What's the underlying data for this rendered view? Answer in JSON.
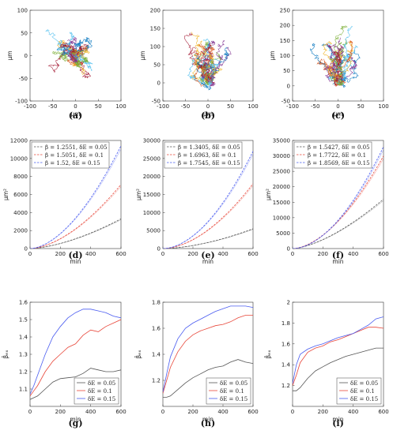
{
  "figure": {
    "captions": [
      "(a)",
      "(b)",
      "(c)",
      "(d)",
      "(e)",
      "(f)",
      "(g)",
      "(h)",
      "(i)"
    ]
  },
  "colors": {
    "trajectories": [
      "#0072bd",
      "#d95319",
      "#edb120",
      "#7e2f8e",
      "#77ac30",
      "#4dbeee",
      "#a2142f"
    ],
    "black_series": "#555555",
    "red_series": "#e8473a",
    "blue_series": "#4a5cf0"
  },
  "chart_data": [
    {
      "id": "a",
      "type": "scatter",
      "xlabel": "μm",
      "ylabel": "μm",
      "xlim": [
        -100,
        100
      ],
      "ylim": [
        -100,
        100
      ],
      "xticks": [
        -100,
        -50,
        0,
        50,
        100
      ],
      "yticks": [
        -100,
        -50,
        0,
        50,
        100
      ],
      "note": "cell trajectories"
    },
    {
      "id": "b",
      "type": "scatter",
      "xlabel": "μm",
      "ylabel": "μm",
      "xlim": [
        -100,
        100
      ],
      "ylim": [
        -50,
        200
      ],
      "xticks": [
        -100,
        -50,
        0,
        50,
        100
      ],
      "yticks": [
        -50,
        0,
        50,
        100,
        150,
        200
      ]
    },
    {
      "id": "c",
      "type": "scatter",
      "xlabel": "μm",
      "ylabel": "μm",
      "xlim": [
        -100,
        100
      ],
      "ylim": [
        -50,
        250
      ],
      "xticks": [
        -100,
        -50,
        0,
        50,
        100
      ],
      "yticks": [
        -50,
        0,
        50,
        100,
        150,
        200,
        250
      ]
    },
    {
      "id": "d",
      "type": "line",
      "xlabel": "min",
      "ylabel": "μm²",
      "xlim": [
        0,
        600
      ],
      "ylim": [
        0,
        12000
      ],
      "xticks": [
        0,
        200,
        400,
        600
      ],
      "yticks": [
        0,
        2000,
        4000,
        6000,
        8000,
        10000,
        12000
      ],
      "legend_position": "top-left",
      "series": [
        {
          "name": "β = 1.2551, δE = 0.05",
          "color": "black",
          "end": 3300,
          "exp": 1.6
        },
        {
          "name": "β = 1.5051, δE = 0.1",
          "color": "red",
          "end": 7100,
          "exp": 1.7
        },
        {
          "name": "β = 1.52, δE = 0.15",
          "color": "blue",
          "end": 11400,
          "exp": 1.75
        }
      ]
    },
    {
      "id": "e",
      "type": "line",
      "xlabel": "min",
      "ylabel": "μm²",
      "xlim": [
        0,
        600
      ],
      "ylim": [
        0,
        30000
      ],
      "xticks": [
        0,
        200,
        400,
        600
      ],
      "yticks": [
        0,
        5000,
        10000,
        15000,
        20000,
        25000,
        30000
      ],
      "legend_position": "top-left",
      "series": [
        {
          "name": "β = 1.3405, δE = 0.05",
          "color": "black",
          "end": 5500,
          "exp": 1.7
        },
        {
          "name": "β = 1.6963, δE = 0.1",
          "color": "red",
          "end": 18000,
          "exp": 1.8
        },
        {
          "name": "β = 1.7545, δE = 0.15",
          "color": "blue",
          "end": 27000,
          "exp": 1.85
        }
      ]
    },
    {
      "id": "f",
      "type": "line",
      "xlabel": "min",
      "ylabel": "μm²",
      "xlim": [
        0,
        600
      ],
      "ylim": [
        0,
        35000
      ],
      "xticks": [
        0,
        200,
        400,
        600
      ],
      "yticks": [
        0,
        5000,
        10000,
        15000,
        20000,
        25000,
        30000,
        35000
      ],
      "legend_position": "top-left",
      "series": [
        {
          "name": "β = 1.5427, δE = 0.05",
          "color": "black",
          "end": 16000,
          "exp": 1.55
        },
        {
          "name": "β = 1.7722, δE = 0.1",
          "color": "red",
          "end": 30000,
          "exp": 1.75
        },
        {
          "name": "β = 1.8569, δE = 0.15",
          "color": "blue",
          "end": 33000,
          "exp": 1.85
        }
      ]
    },
    {
      "id": "g",
      "type": "line",
      "xlabel": "min",
      "ylabel": "β̂ₑₓ",
      "xlim": [
        0,
        600
      ],
      "ylim": [
        1,
        1.6
      ],
      "xticks": [
        0,
        200,
        400,
        600
      ],
      "yticks": [
        1.1,
        1.2,
        1.3,
        1.4,
        1.5,
        1.6
      ],
      "legend_position": "bottom-right",
      "x": [
        0,
        25,
        50,
        100,
        150,
        200,
        250,
        300,
        350,
        400,
        450,
        500,
        550,
        600
      ],
      "series": [
        {
          "name": "δE = 0.05",
          "color": "black",
          "values": [
            1.04,
            1.05,
            1.06,
            1.1,
            1.14,
            1.16,
            1.165,
            1.17,
            1.19,
            1.22,
            1.21,
            1.2,
            1.2,
            1.21
          ]
        },
        {
          "name": "δE = 0.1",
          "color": "red",
          "values": [
            1.06,
            1.09,
            1.12,
            1.2,
            1.26,
            1.3,
            1.34,
            1.36,
            1.41,
            1.44,
            1.43,
            1.46,
            1.48,
            1.5
          ]
        },
        {
          "name": "δE = 0.15",
          "color": "blue",
          "values": [
            1.07,
            1.12,
            1.18,
            1.3,
            1.4,
            1.46,
            1.51,
            1.54,
            1.56,
            1.56,
            1.55,
            1.54,
            1.52,
            1.51
          ]
        }
      ]
    },
    {
      "id": "h",
      "type": "line",
      "xlabel": "min",
      "ylabel": "β̂ₑₓ",
      "xlim": [
        0,
        600
      ],
      "ylim": [
        1,
        1.8
      ],
      "xticks": [
        0,
        200,
        400,
        600
      ],
      "yticks": [
        1.2,
        1.4,
        1.6,
        1.8
      ],
      "legend_position": "bottom-right",
      "x": [
        0,
        25,
        50,
        100,
        150,
        200,
        250,
        300,
        350,
        400,
        450,
        500,
        550,
        600
      ],
      "series": [
        {
          "name": "δE = 0.05",
          "color": "black",
          "values": [
            1.07,
            1.07,
            1.08,
            1.13,
            1.18,
            1.22,
            1.25,
            1.28,
            1.3,
            1.31,
            1.34,
            1.36,
            1.34,
            1.33
          ]
        },
        {
          "name": "δE = 0.1",
          "color": "red",
          "values": [
            1.1,
            1.2,
            1.3,
            1.42,
            1.5,
            1.55,
            1.58,
            1.6,
            1.62,
            1.63,
            1.65,
            1.68,
            1.7,
            1.7
          ]
        },
        {
          "name": "δE = 0.15",
          "color": "blue",
          "values": [
            1.11,
            1.25,
            1.38,
            1.52,
            1.6,
            1.64,
            1.67,
            1.7,
            1.73,
            1.75,
            1.77,
            1.77,
            1.77,
            1.76
          ]
        }
      ]
    },
    {
      "id": "i",
      "type": "line",
      "xlabel": "min",
      "ylabel": "β̂ₑₓ",
      "xlim": [
        0,
        600
      ],
      "ylim": [
        1,
        2
      ],
      "xticks": [
        0,
        200,
        400,
        600
      ],
      "yticks": [
        1.2,
        1.4,
        1.6,
        1.8,
        2
      ],
      "legend_position": "bottom-right",
      "x": [
        0,
        25,
        50,
        100,
        150,
        200,
        250,
        300,
        350,
        400,
        450,
        500,
        550,
        600
      ],
      "series": [
        {
          "name": "δE = 0.05",
          "color": "black",
          "values": [
            1.15,
            1.15,
            1.18,
            1.27,
            1.34,
            1.38,
            1.42,
            1.45,
            1.48,
            1.5,
            1.52,
            1.54,
            1.56,
            1.56
          ]
        },
        {
          "name": "δE = 0.1",
          "color": "red",
          "values": [
            1.2,
            1.3,
            1.42,
            1.52,
            1.56,
            1.58,
            1.62,
            1.64,
            1.67,
            1.7,
            1.73,
            1.76,
            1.76,
            1.75
          ]
        },
        {
          "name": "δE = 0.15",
          "color": "blue",
          "values": [
            1.22,
            1.4,
            1.5,
            1.55,
            1.58,
            1.6,
            1.63,
            1.66,
            1.68,
            1.7,
            1.74,
            1.78,
            1.84,
            1.86
          ]
        }
      ]
    }
  ]
}
